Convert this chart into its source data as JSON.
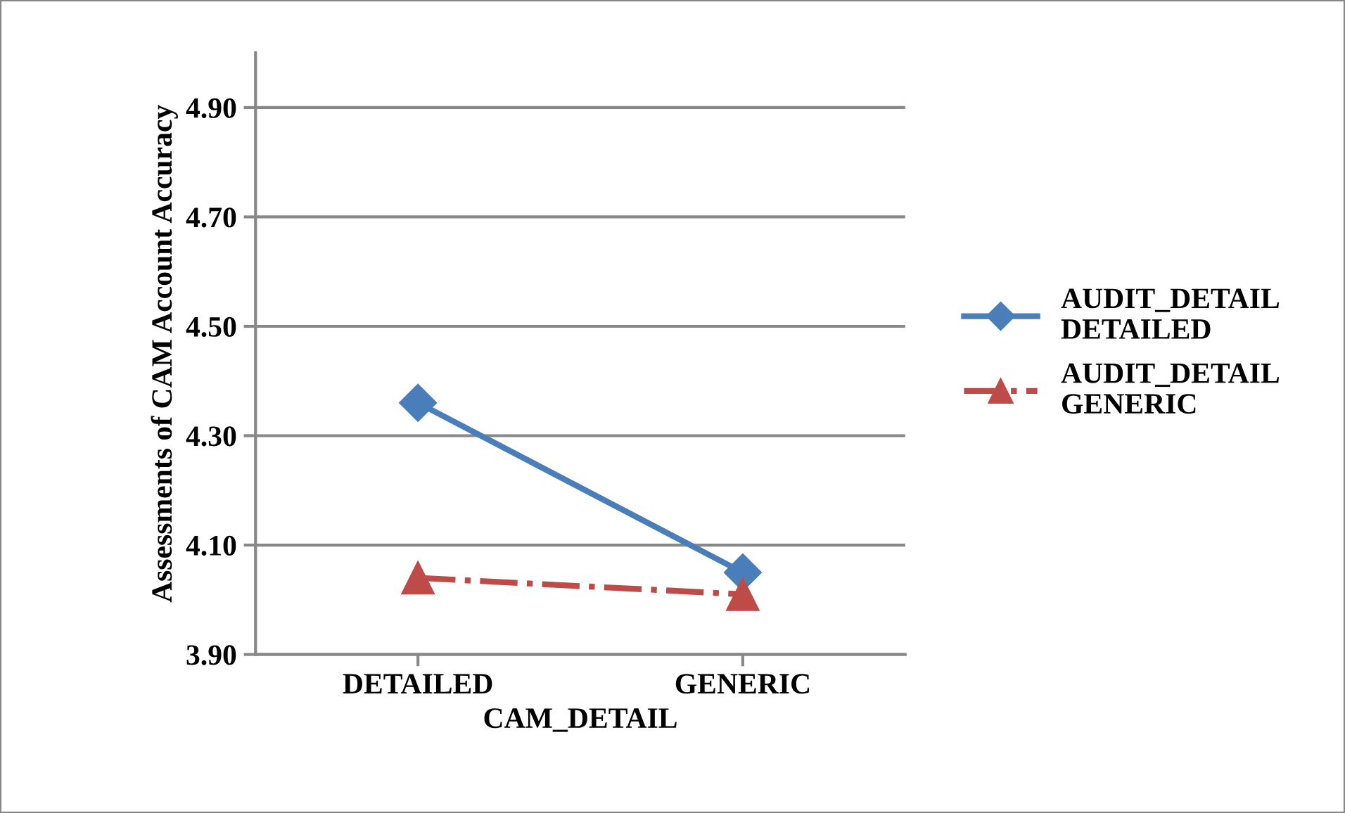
{
  "chart_data": {
    "type": "line",
    "xlabel": "CAM_DETAIL",
    "ylabel": "Assessments of CAM Account Accuracy",
    "categories": [
      "DETAILED",
      "GENERIC"
    ],
    "series": [
      {
        "name": "AUDIT_DETAIL DETAILED",
        "color": "#4a7ebb",
        "values": [
          4.36,
          4.05
        ],
        "marker": "diamond",
        "line_style": "solid"
      },
      {
        "name": "AUDIT_DETAIL GENERIC",
        "color": "#be4b48",
        "values": [
          4.04,
          4.01
        ],
        "marker": "triangle",
        "line_style": "dashdot"
      }
    ],
    "ylim": [
      3.9,
      5.0
    ],
    "yticks": [
      {
        "value": 3.9,
        "label": "3.90"
      },
      {
        "value": 4.1,
        "label": "4.10"
      },
      {
        "value": 4.3,
        "label": "4.30"
      },
      {
        "value": 4.5,
        "label": "4.50"
      },
      {
        "value": 4.7,
        "label": "4.70"
      },
      {
        "value": 4.9,
        "label": "4.90"
      }
    ],
    "grid": "y",
    "legend": "right"
  }
}
